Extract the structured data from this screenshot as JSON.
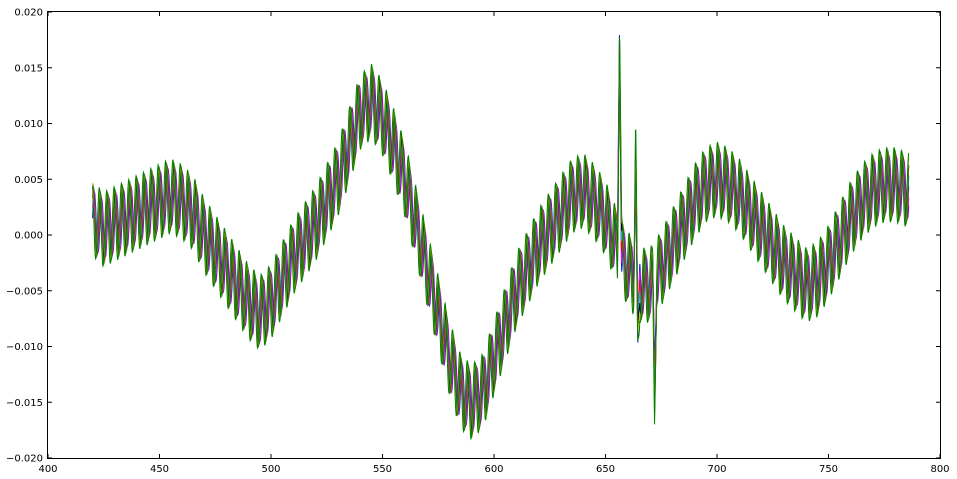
{
  "chart_data": {
    "type": "line",
    "title": "",
    "xlabel": "",
    "ylabel": "",
    "xlim": [
      400,
      800
    ],
    "ylim": [
      -0.02,
      0.02
    ],
    "grid": false,
    "legend": "none",
    "x_ticks": [
      400,
      450,
      500,
      550,
      600,
      650,
      700,
      750,
      800
    ],
    "x_tick_labels": [
      "400",
      "450",
      "500",
      "550",
      "600",
      "650",
      "700",
      "750",
      "800"
    ],
    "y_ticks": [
      -0.02,
      -0.015,
      -0.01,
      -0.005,
      0.0,
      0.005,
      0.01,
      0.015,
      0.02
    ],
    "y_tick_labels": [
      "−0.020",
      "−0.015",
      "−0.010",
      "−0.005",
      "0.000",
      "0.005",
      "0.010",
      "0.015",
      "0.020"
    ],
    "series_colors": [
      "#0000ff",
      "#ff00ff",
      "#ff0000",
      "#00bfbf",
      "#000000",
      "#bfbf00",
      "#008000"
    ],
    "envelope": {
      "x": [
        420,
        425,
        430,
        440,
        450,
        455,
        460,
        465,
        470,
        480,
        490,
        495,
        500,
        505,
        510,
        520,
        530,
        535,
        540,
        545,
        550,
        555,
        560,
        565,
        570,
        575,
        580,
        585,
        590,
        595,
        600,
        605,
        610,
        620,
        630,
        635,
        640,
        645,
        650,
        655,
        660,
        665,
        670,
        675,
        680,
        685,
        690,
        695,
        700,
        705,
        710,
        715,
        720,
        725,
        730,
        735,
        740,
        745,
        750,
        755,
        760,
        765,
        770,
        775,
        780,
        786
      ],
      "y": [
        0.0015,
        0.0005,
        0.001,
        0.002,
        0.003,
        0.0035,
        0.003,
        0.002,
        0.0,
        -0.003,
        -0.006,
        -0.007,
        -0.006,
        -0.004,
        -0.002,
        0.001,
        0.005,
        0.008,
        0.011,
        0.012,
        0.0105,
        0.008,
        0.005,
        0.001,
        -0.003,
        -0.007,
        -0.011,
        -0.014,
        -0.015,
        -0.014,
        -0.011,
        -0.008,
        -0.005,
        -0.001,
        0.002,
        0.0035,
        0.004,
        0.003,
        0.0015,
        -0.001,
        -0.003,
        -0.0045,
        -0.0045,
        -0.003,
        -0.001,
        0.001,
        0.003,
        0.0045,
        0.005,
        0.0045,
        0.0035,
        0.002,
        0.0005,
        -0.001,
        -0.0025,
        -0.0035,
        -0.0045,
        -0.004,
        -0.0025,
        -0.0005,
        0.0015,
        0.003,
        0.004,
        0.0045,
        0.0045,
        0.004
      ]
    },
    "oscillation": {
      "period": 3.3,
      "amplitude": 0.0028
    },
    "spikes": [
      {
        "x": 656.3,
        "y": 0.0205
      },
      {
        "x": 663.5,
        "y": 0.008
      },
      {
        "x": 664.5,
        "y": -0.011
      },
      {
        "x": 672.0,
        "y": -0.0138
      }
    ]
  }
}
